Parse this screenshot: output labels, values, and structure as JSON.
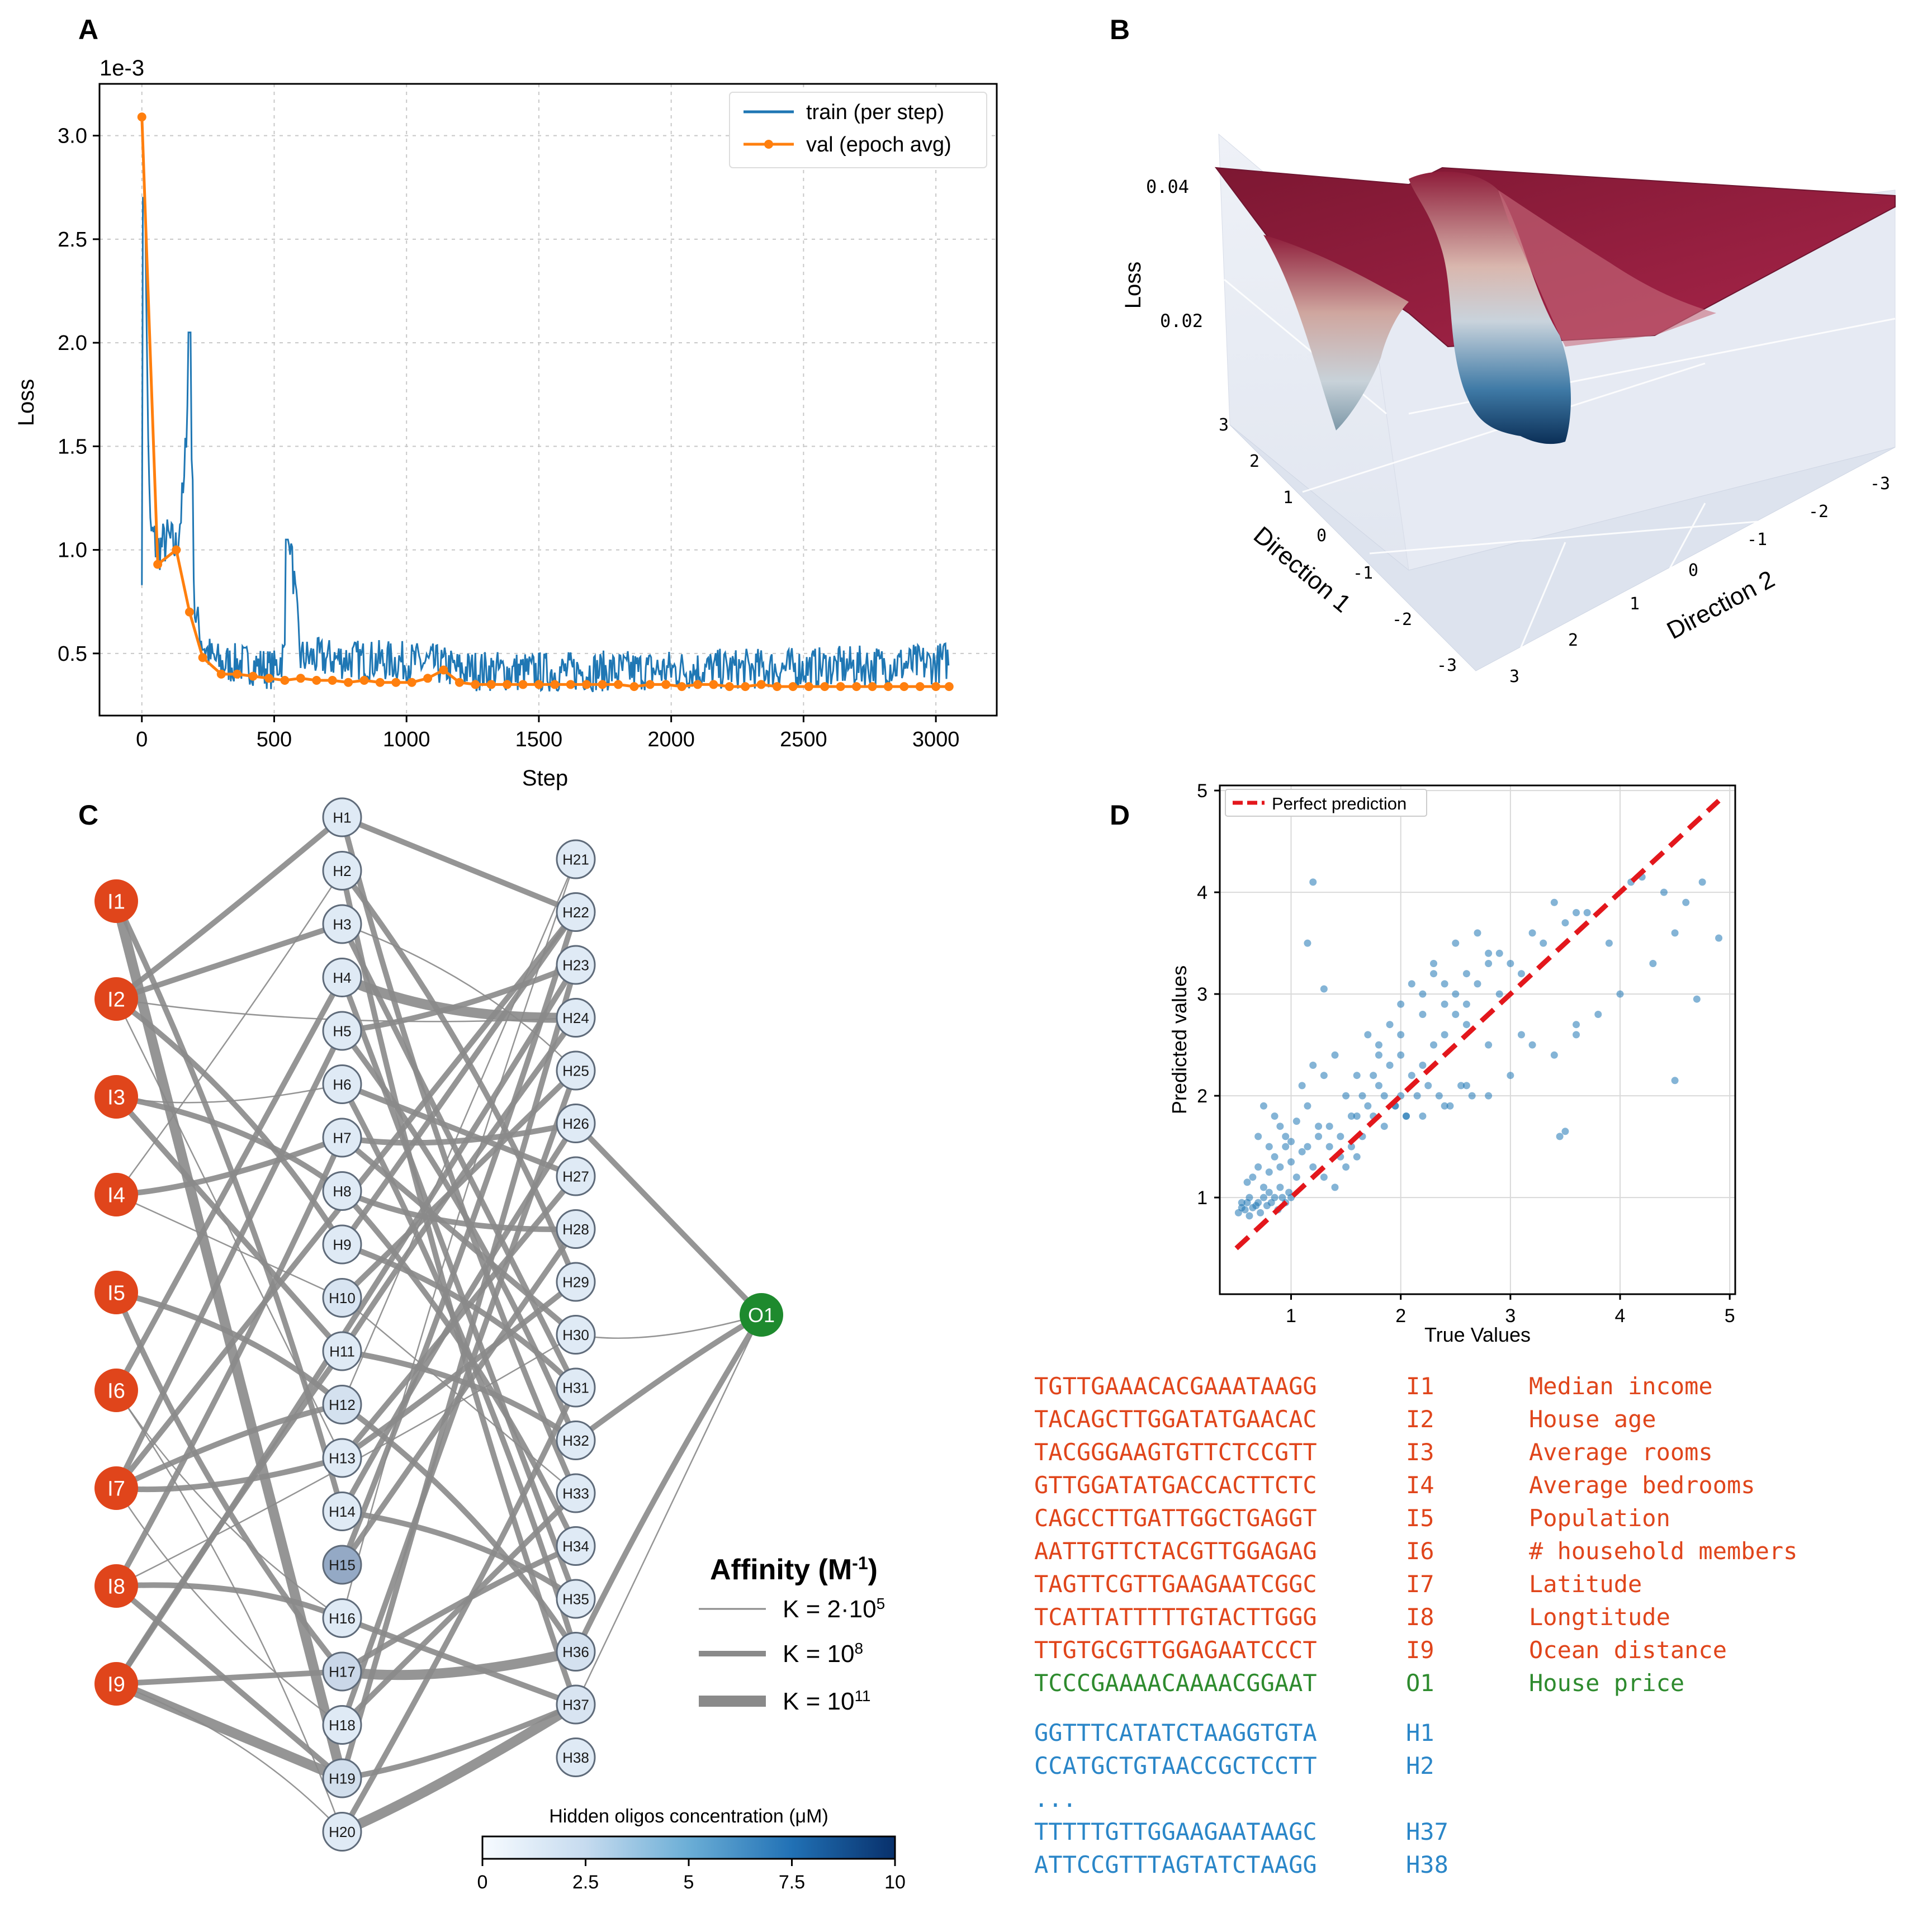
{
  "panels": {
    "A": "A",
    "B": "B",
    "C": "C",
    "D": "D"
  },
  "colors": {
    "train": "#1f77b4",
    "val": "#ff7f0e",
    "input_node": "#e0451b",
    "output_node": "#1e8a2e",
    "hidden_node": "#dbe9f6",
    "edge": "#8a8a8a",
    "dashed_line": "#e3171c",
    "seq_red": "#e0451b",
    "seq_green": "#2e8b2e",
    "seq_blue": "#2a86c8",
    "surface_high": "#9a1e3c",
    "surface_low": "#0d3a66"
  },
  "chart_data": [
    {
      "panel": "A",
      "type": "line",
      "title": "",
      "xlabel": "Step",
      "ylabel": "Loss",
      "scale_label": "1e-3",
      "xlim": [
        -160,
        3230
      ],
      "ylim": [
        0.2,
        3.25
      ],
      "xticks": [
        0,
        500,
        1000,
        1500,
        2000,
        2500,
        3000
      ],
      "yticks": [
        0.5,
        1.0,
        1.5,
        2.0,
        2.5,
        3.0
      ],
      "xtick_labels": [
        "0",
        "500",
        "1000",
        "1500",
        "2000",
        "2500",
        "3000"
      ],
      "ytick_labels": [
        "0.5",
        "1.0",
        "1.5",
        "2.0",
        "2.5",
        "3.0"
      ],
      "grid": true,
      "legend_position": "top-right",
      "series": [
        {
          "name": "train (per step)",
          "style": "noisy line",
          "anchors_x": [
            0,
            10,
            30,
            60,
            100,
            130,
            160,
            180,
            200,
            230,
            260,
            300,
            400,
            500,
            540,
            560,
            600,
            800,
            1000,
            1100,
            1200,
            1500,
            2000,
            2500,
            3000,
            3050
          ],
          "anchors_y": [
            0.95,
            2.7,
            1.1,
            1.0,
            1.05,
            1.0,
            1.3,
            2.05,
            0.7,
            0.55,
            0.48,
            0.45,
            0.45,
            0.42,
            0.5,
            1.05,
            0.48,
            0.47,
            0.46,
            0.45,
            0.42,
            0.41,
            0.42,
            0.43,
            0.45,
            0.47
          ],
          "noise_amplitude": 0.1
        },
        {
          "name": "val (epoch avg)",
          "style": "line with markers",
          "x": [
            0,
            60,
            130,
            180,
            230,
            300,
            360,
            420,
            480,
            540,
            600,
            660,
            720,
            780,
            840,
            900,
            960,
            1020,
            1080,
            1140,
            1200,
            1260,
            1320,
            1380,
            1440,
            1500,
            1560,
            1620,
            1680,
            1740,
            1800,
            1860,
            1920,
            1980,
            2040,
            2100,
            2160,
            2220,
            2280,
            2340,
            2400,
            2460,
            2520,
            2580,
            2640,
            2700,
            2760,
            2820,
            2880,
            2940,
            3000,
            3050
          ],
          "y": [
            3.09,
            0.93,
            1.0,
            0.7,
            0.48,
            0.4,
            0.4,
            0.39,
            0.38,
            0.37,
            0.38,
            0.37,
            0.37,
            0.36,
            0.37,
            0.36,
            0.36,
            0.36,
            0.38,
            0.42,
            0.36,
            0.35,
            0.35,
            0.35,
            0.35,
            0.35,
            0.35,
            0.35,
            0.35,
            0.35,
            0.35,
            0.34,
            0.35,
            0.35,
            0.34,
            0.35,
            0.35,
            0.34,
            0.34,
            0.35,
            0.34,
            0.34,
            0.34,
            0.34,
            0.34,
            0.34,
            0.34,
            0.34,
            0.34,
            0.34,
            0.34,
            0.34
          ]
        }
      ]
    },
    {
      "panel": "B",
      "type": "surface",
      "title": "",
      "zlabel": "Loss",
      "xlabel": "Direction 1",
      "ylabel": "Direction 2",
      "zticks": [
        "0.04",
        "0.02"
      ],
      "xticks": [
        "3",
        "2",
        "1",
        "0",
        "-1",
        "-2",
        "-3"
      ],
      "yticks": [
        "-3",
        "-2",
        "-1",
        "0",
        "1",
        "2",
        "3"
      ],
      "zlim": [
        0,
        0.045
      ],
      "xlim": [
        -3,
        3
      ],
      "ylim": [
        -3,
        3
      ]
    },
    {
      "panel": "D",
      "type": "scatter",
      "title": "",
      "xlabel": "True Values",
      "ylabel": "Predicted values",
      "xlim": [
        0.35,
        5.05
      ],
      "ylim": [
        0.05,
        5.05
      ],
      "xticks": [
        1,
        2,
        3,
        4,
        5
      ],
      "yticks": [
        1,
        2,
        3,
        4,
        5
      ],
      "xtick_labels": [
        "1",
        "2",
        "3",
        "4",
        "5"
      ],
      "ytick_labels": [
        "1",
        "2",
        "3",
        "4",
        "5"
      ],
      "grid": true,
      "legend_position": "top-left",
      "reference_line": {
        "name": "Perfect prediction",
        "x": [
          0.5,
          4.9
        ],
        "y": [
          0.5,
          4.9
        ]
      },
      "points_x": [
        0.52,
        0.55,
        0.58,
        0.6,
        0.62,
        0.65,
        0.68,
        0.7,
        0.72,
        0.75,
        0.78,
        0.8,
        0.82,
        0.85,
        0.88,
        0.9,
        0.92,
        0.95,
        0.98,
        1.0,
        0.6,
        0.65,
        0.7,
        0.75,
        0.8,
        0.85,
        0.9,
        0.95,
        1.0,
        1.05,
        0.7,
        0.8,
        0.9,
        1.0,
        1.1,
        1.2,
        1.3,
        1.4,
        1.5,
        1.6,
        0.75,
        0.85,
        0.95,
        1.05,
        1.15,
        1.25,
        1.35,
        1.45,
        1.55,
        1.65,
        1.1,
        1.2,
        1.3,
        1.4,
        1.5,
        1.6,
        1.7,
        1.8,
        1.9,
        2.0,
        1.15,
        1.25,
        1.35,
        1.45,
        1.55,
        1.65,
        1.75,
        1.85,
        1.95,
        2.05,
        1.7,
        1.8,
        1.9,
        2.0,
        2.1,
        2.2,
        2.3,
        2.4,
        2.5,
        2.6,
        1.75,
        1.85,
        1.95,
        2.05,
        2.15,
        2.25,
        2.35,
        2.45,
        2.55,
        2.65,
        2.0,
        2.1,
        2.2,
        2.3,
        2.4,
        2.5,
        2.6,
        2.7,
        2.8,
        2.9,
        2.2,
        2.4,
        2.6,
        2.8,
        3.0,
        3.2,
        3.4,
        3.6,
        3.8,
        4.0,
        2.3,
        2.5,
        2.7,
        2.9,
        3.1,
        3.3,
        3.5,
        3.7,
        3.9,
        4.1,
        1.8,
        2.0,
        2.2,
        2.4,
        2.6,
        2.8,
        3.0,
        3.2,
        3.4,
        3.6,
        4.2,
        4.4,
        4.6,
        4.75,
        4.9,
        4.5,
        4.7,
        1.15,
        1.2,
        3.45,
        3.5,
        4.5,
        1.3,
        1.6,
        2.8,
        3.1,
        3.6,
        4.3,
        0.55,
        0.62
      ],
      "points_y": [
        0.85,
        0.9,
        0.88,
        0.95,
        0.82,
        0.9,
        0.92,
        0.95,
        0.85,
        1.0,
        0.92,
        1.05,
        0.95,
        1.0,
        0.88,
        1.1,
        1.0,
        0.95,
        1.05,
        1.0,
        1.15,
        1.2,
        1.3,
        1.1,
        1.25,
        1.4,
        1.3,
        1.5,
        1.35,
        1.2,
        1.6,
        1.5,
        1.7,
        1.55,
        1.45,
        1.3,
        1.2,
        1.1,
        1.3,
        1.4,
        1.9,
        1.8,
        1.6,
        1.75,
        1.9,
        1.7,
        1.5,
        1.6,
        1.8,
        2.0,
        2.1,
        2.3,
        2.2,
        2.4,
        2.0,
        1.8,
        1.9,
        2.1,
        2.3,
        2.0,
        1.5,
        1.6,
        1.7,
        1.4,
        1.5,
        1.6,
        1.8,
        1.7,
        1.9,
        1.8,
        2.6,
        2.5,
        2.7,
        2.4,
        2.2,
        2.3,
        2.5,
        2.6,
        2.8,
        2.7,
        2.2,
        2.0,
        1.9,
        1.8,
        2.0,
        2.1,
        2.0,
        1.9,
        2.1,
        2.0,
        2.9,
        3.1,
        3.0,
        3.2,
        3.1,
        3.0,
        2.9,
        3.1,
        3.3,
        3.0,
        1.8,
        1.9,
        2.1,
        2.0,
        2.2,
        2.5,
        2.4,
        2.6,
        2.8,
        3.0,
        3.3,
        3.5,
        3.6,
        3.4,
        3.2,
        3.5,
        3.7,
        3.8,
        3.5,
        4.1,
        2.4,
        2.6,
        2.8,
        2.9,
        3.2,
        3.4,
        3.3,
        3.6,
        3.9,
        3.8,
        4.15,
        4.0,
        3.9,
        4.1,
        3.55,
        3.6,
        2.95,
        3.5,
        4.1,
        1.6,
        1.65,
        2.15,
        3.05,
        2.2,
        2.5,
        2.6,
        2.7,
        3.3,
        0.95,
        1.0
      ]
    },
    {
      "panel": "C",
      "type": "network",
      "inputs": [
        "I1",
        "I2",
        "I3",
        "I4",
        "I5",
        "I6",
        "I7",
        "I8",
        "I9"
      ],
      "hidden_left": [
        "H1",
        "H2",
        "H3",
        "H4",
        "H5",
        "H6",
        "H7",
        "H8",
        "H9",
        "H10",
        "H11",
        "H12",
        "H13",
        "H14",
        "H15",
        "H16",
        "H17",
        "H18",
        "H19",
        "H20"
      ],
      "hidden_right": [
        "H21",
        "H22",
        "H23",
        "H24",
        "H25",
        "H26",
        "H27",
        "H28",
        "H29",
        "H30",
        "H31",
        "H32",
        "H33",
        "H34",
        "H35",
        "H36",
        "H37",
        "H38"
      ],
      "output": "O1",
      "hidden_concentration_uM": {
        "H15": 2.3,
        "H17": 0.8,
        "H19": 0.6,
        "H12": 0.5,
        "H10": 0.4,
        "H36": 0.5,
        "H37": 0.4
      },
      "edges": [
        [
          "I1",
          "H19",
          3
        ],
        [
          "I1",
          "H14",
          2
        ],
        [
          "I2",
          "H1",
          2
        ],
        [
          "I2",
          "H3",
          2
        ],
        [
          "I2",
          "H24",
          1
        ],
        [
          "I2",
          "H9",
          2
        ],
        [
          "I2",
          "H13",
          1
        ],
        [
          "I3",
          "H8",
          2
        ],
        [
          "I3",
          "H6",
          1
        ],
        [
          "I3",
          "H11",
          2
        ],
        [
          "I4",
          "H7",
          2
        ],
        [
          "I4",
          "H2",
          1
        ],
        [
          "I4",
          "H10",
          1
        ],
        [
          "I5",
          "H12",
          2
        ],
        [
          "I5",
          "H17",
          2
        ],
        [
          "I6",
          "H4",
          2
        ],
        [
          "I6",
          "H16",
          1
        ],
        [
          "I6",
          "H20",
          1
        ],
        [
          "I7",
          "H5",
          2
        ],
        [
          "I7",
          "H12",
          2
        ],
        [
          "I7",
          "H13",
          2
        ],
        [
          "I7",
          "H22",
          2
        ],
        [
          "I7",
          "H18",
          1
        ],
        [
          "I8",
          "H16",
          2
        ],
        [
          "I8",
          "H19",
          2
        ],
        [
          "I8",
          "H7",
          2
        ],
        [
          "I8",
          "H30",
          1
        ],
        [
          "I9",
          "H19",
          3
        ],
        [
          "I9",
          "H11",
          2
        ],
        [
          "I9",
          "H23",
          2
        ],
        [
          "I9",
          "H17",
          2
        ],
        [
          "I9",
          "H20",
          1
        ],
        [
          "H1",
          "H33",
          2
        ],
        [
          "H1",
          "H22",
          2
        ],
        [
          "H2",
          "H37",
          2
        ],
        [
          "H2",
          "H29",
          2
        ],
        [
          "H3",
          "H31",
          2
        ],
        [
          "H3",
          "H25",
          1
        ],
        [
          "H4",
          "H24",
          3
        ],
        [
          "H4",
          "H35",
          2
        ],
        [
          "H5",
          "H23",
          2
        ],
        [
          "H5",
          "H32",
          2
        ],
        [
          "H6",
          "H27",
          2
        ],
        [
          "H6",
          "H36",
          2
        ],
        [
          "H7",
          "H26",
          2
        ],
        [
          "H7",
          "H30",
          2
        ],
        [
          "H8",
          "H28",
          2
        ],
        [
          "H8",
          "H34",
          2
        ],
        [
          "H9",
          "H22",
          2
        ],
        [
          "H9",
          "H31",
          2
        ],
        [
          "H10",
          "H25",
          2
        ],
        [
          "H10",
          "H33",
          1
        ],
        [
          "H11",
          "H24",
          2
        ],
        [
          "H11",
          "H32",
          2
        ],
        [
          "H12",
          "H21",
          1
        ],
        [
          "H12",
          "H36",
          2
        ],
        [
          "H13",
          "H29",
          2
        ],
        [
          "H13",
          "H27",
          2
        ],
        [
          "H14",
          "H26",
          2
        ],
        [
          "H14",
          "H35",
          2
        ],
        [
          "H15",
          "H28",
          2
        ],
        [
          "H15",
          "H22",
          2
        ],
        [
          "H16",
          "H21",
          1
        ],
        [
          "H16",
          "H37",
          2
        ],
        [
          "H17",
          "H36",
          3
        ],
        [
          "H17",
          "H34",
          2
        ],
        [
          "H18",
          "H25",
          2
        ],
        [
          "H18",
          "H33",
          2
        ],
        [
          "H19",
          "H37",
          2
        ],
        [
          "H19",
          "H23",
          2
        ],
        [
          "H20",
          "H37",
          3
        ],
        [
          "H20",
          "H31",
          2
        ],
        [
          "H26",
          "O1",
          2
        ],
        [
          "H32",
          "O1",
          2
        ],
        [
          "H36",
          "O1",
          2
        ],
        [
          "H37",
          "O1",
          1
        ],
        [
          "H30",
          "O1",
          1
        ]
      ],
      "legend": {
        "title": "Affinity (M",
        "title_sup": "-1",
        "title_end": ")",
        "items": [
          {
            "base": "K = 2·10",
            "exp": "5",
            "width": 1
          },
          {
            "base": "K = 10",
            "exp": "8",
            "width": 2
          },
          {
            "base": "K = 10",
            "exp": "11",
            "width": 3
          }
        ]
      },
      "colorbar": {
        "label": "Hidden oligos concentration (μM)",
        "ticks": [
          "0",
          "2.5",
          "5",
          "7.5",
          "10"
        ],
        "range": [
          0,
          10
        ]
      }
    }
  ],
  "sequence_table": {
    "rows": [
      {
        "seq": "TGTTGAAACACGAAATAAGG",
        "id": "I1",
        "feature": "Median income",
        "color": "red"
      },
      {
        "seq": "TACAGCTTGGATATGAACAC",
        "id": "I2",
        "feature": "House age",
        "color": "red"
      },
      {
        "seq": "TACGGGAAGTGTTCTCCGTT",
        "id": "I3",
        "feature": "Average rooms",
        "color": "red"
      },
      {
        "seq": "GTTGGATATGACCACTTCTC",
        "id": "I4",
        "feature": "Average bedrooms",
        "color": "red"
      },
      {
        "seq": "CAGCCTTGATTGGCTGAGGT",
        "id": "I5",
        "feature": "Population",
        "color": "red"
      },
      {
        "seq": "AATTGTTCTACGTTGGAGAG",
        "id": "I6",
        "feature": "# household members",
        "color": "red"
      },
      {
        "seq": "TAGTTCGTTGAAGAATCGGC",
        "id": "I7",
        "feature": "Latitude",
        "color": "red"
      },
      {
        "seq": "TCATTATTTTTGTACTTGGG",
        "id": "I8",
        "feature": "Longtitude",
        "color": "red"
      },
      {
        "seq": "TTGTGCGTTGGAGAATCCCT",
        "id": "I9",
        "feature": "Ocean distance",
        "color": "red"
      },
      {
        "seq": "TCCCGAAAACAAAACGGAAT",
        "id": "O1",
        "feature": "House price",
        "color": "green"
      }
    ],
    "hidden_rows_top": [
      {
        "seq": "GGTTTCATATCTAAGGTGTA",
        "id": "H1",
        "feature": "",
        "color": "blue"
      },
      {
        "seq": "CCATGCTGTAACCGCTCCTT",
        "id": "H2",
        "feature": "",
        "color": "blue"
      }
    ],
    "ellipsis": "...",
    "hidden_rows_bottom": [
      {
        "seq": "TTTTTGTTGGAAGAATAAGC",
        "id": "H37",
        "feature": "",
        "color": "blue"
      },
      {
        "seq": "ATTCCGTTTAGTATCTAAGG",
        "id": "H38",
        "feature": "",
        "color": "blue"
      }
    ]
  }
}
